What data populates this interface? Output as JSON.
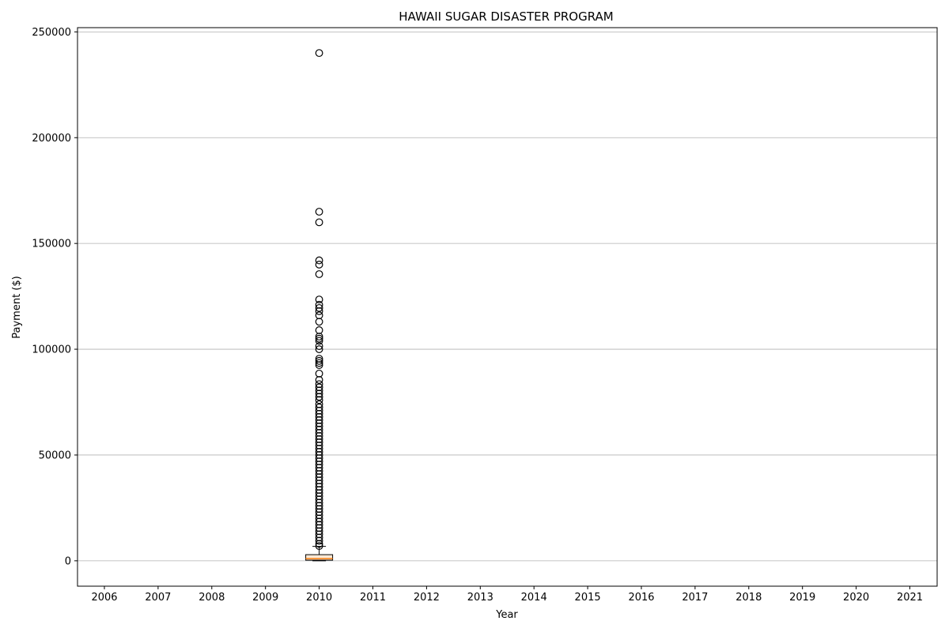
{
  "chart_data": {
    "type": "box",
    "title": "HAWAII SUGAR DISASTER PROGRAM",
    "xlabel": "Year",
    "ylabel": "Payment ($)",
    "categories": [
      "2006",
      "2007",
      "2008",
      "2009",
      "2010",
      "2011",
      "2012",
      "2013",
      "2014",
      "2015",
      "2016",
      "2017",
      "2018",
      "2019",
      "2020",
      "2021"
    ],
    "y_ticks": [
      0,
      50000,
      100000,
      150000,
      200000,
      250000
    ],
    "y_tick_labels": [
      "0",
      "50000",
      "100000",
      "150000",
      "200000",
      "250000"
    ],
    "ylim": [
      -12000,
      252000
    ],
    "grid": "y",
    "boxes": [
      {
        "category": "2010",
        "whisker_low": 0,
        "q1": 300,
        "median": 1000,
        "q3": 2900,
        "whisker_high": 6800,
        "outliers": [
          240000,
          165000,
          160000,
          142000,
          140000,
          135500,
          123500,
          121000,
          119500,
          118000,
          116000,
          113000,
          109000,
          106000,
          105000,
          104000,
          101500,
          100000,
          95500,
          94500,
          93500,
          92500,
          88500,
          85500,
          83500,
          82000,
          80500,
          79000,
          77500,
          76000,
          74000,
          72500,
          71000,
          69500,
          68000,
          66500,
          65000,
          63500,
          62000,
          60500,
          59000,
          57500,
          56000,
          54500,
          53000,
          51500,
          50000,
          48500,
          47000,
          45500,
          44000,
          42500,
          41000,
          39500,
          38000,
          36500,
          35000,
          33500,
          32000,
          30500,
          29000,
          27500,
          26000,
          24500,
          23000,
          21500,
          20000,
          18500,
          17000,
          15500,
          14000,
          12500,
          11000,
          9500,
          8000,
          7000
        ]
      }
    ]
  },
  "colors": {
    "box_fill": "#fbe9d6",
    "median": "#ff7f0e",
    "grid": "#b0b0b0",
    "axis": "#000000"
  }
}
